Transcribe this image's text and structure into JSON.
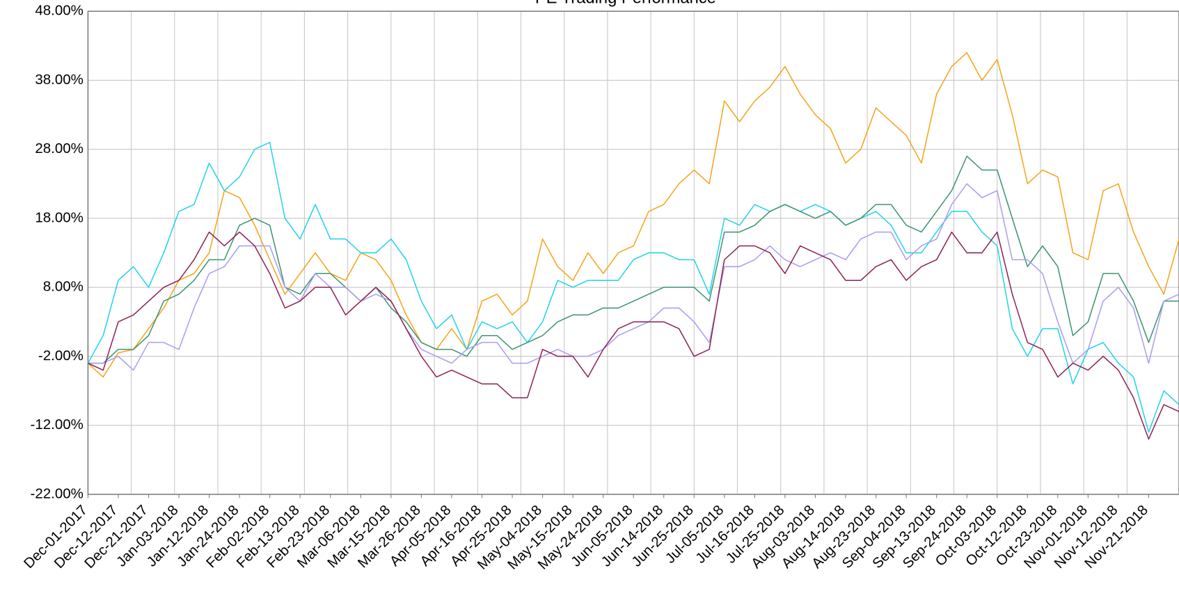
{
  "chart_data": {
    "type": "line",
    "title": "PE Trading Performance",
    "categories": [
      "Dec-01-2017",
      null,
      "Dec-12-2017",
      null,
      "Dec-21-2017",
      null,
      "Jan-03-2018",
      null,
      "Jan-12-2018",
      null,
      "Jan-24-2018",
      null,
      "Feb-02-2018",
      null,
      "Feb-13-2018",
      null,
      "Feb-23-2018",
      null,
      "Mar-06-2018",
      null,
      "Mar-15-2018",
      null,
      "Mar-26-2018",
      null,
      "Apr-05-2018",
      null,
      "Apr-16-2018",
      null,
      "Apr-25-2018",
      null,
      "May-04-2018",
      null,
      "May-15-2018",
      null,
      "May-24-2018",
      null,
      "Jun-05-2018",
      null,
      "Jun-14-2018",
      null,
      "Jun-25-2018",
      null,
      "Jul-05-2018",
      null,
      "Jul-16-2018",
      null,
      "Jul-25-2018",
      null,
      "Aug-03-2018",
      null,
      "Aug-14-2018",
      null,
      "Aug-23-2018",
      null,
      "Sep-04-2018",
      null,
      "Sep-13-2018",
      null,
      "Sep-24-2018",
      null,
      "Oct-03-2018",
      null,
      "Oct-12-2018",
      null,
      "Oct-23-2018",
      null,
      "Nov-01-2018",
      null,
      "Nov-12-2018",
      null,
      "Nov-21-2018",
      null,
      null
    ],
    "series": [
      {
        "color": "#f5a318",
        "values": [
          -3,
          -5,
          -1.5,
          -1,
          2,
          5,
          9,
          10,
          13,
          22,
          21,
          17,
          12,
          7,
          10,
          13,
          10,
          9,
          13,
          12,
          9,
          4,
          0,
          -1,
          2,
          -1,
          6,
          7,
          4,
          6,
          15,
          11,
          9,
          13,
          10,
          13,
          14,
          19,
          20,
          23,
          25,
          23,
          35,
          32,
          35,
          37,
          40,
          36,
          33,
          31,
          26,
          28,
          34,
          32,
          30,
          26,
          36,
          40,
          42,
          38,
          41,
          33,
          23,
          25,
          24,
          13,
          12,
          22,
          23,
          16,
          11,
          7,
          15
        ]
      },
      {
        "color": "#1fd3ec",
        "values": [
          -3,
          1,
          9,
          11,
          8,
          13,
          19,
          20,
          26,
          22,
          24,
          28,
          29,
          18,
          15,
          20,
          15,
          15,
          13,
          13,
          15,
          12,
          6,
          2,
          4,
          -1,
          3,
          2,
          3,
          0,
          3,
          9,
          8,
          9,
          9,
          9,
          12,
          13,
          13,
          12,
          12,
          7,
          18,
          17,
          20,
          19,
          20,
          19,
          20,
          19,
          17,
          18,
          19,
          17,
          13,
          13,
          16,
          19,
          19,
          16,
          14,
          2,
          -2,
          2,
          2,
          -6,
          -1,
          0,
          -3,
          -5,
          -13,
          -7,
          -9
        ]
      },
      {
        "color": "#3a9470",
        "values": [
          -3,
          -3,
          -1,
          -1,
          1,
          6,
          7,
          9,
          12,
          12,
          17,
          18,
          17,
          8,
          7,
          10,
          10,
          8,
          6,
          8,
          5,
          3,
          0,
          -1,
          -1,
          -2,
          1,
          1,
          -1,
          0,
          1,
          3,
          4,
          4,
          5,
          5,
          6,
          7,
          8,
          8,
          8,
          6,
          16,
          16,
          17,
          19,
          20,
          19,
          18,
          19,
          17,
          18,
          20,
          20,
          17,
          16,
          19,
          22,
          27,
          25,
          25,
          18,
          11,
          14,
          11,
          1,
          3,
          10,
          10,
          6,
          0,
          6,
          6
        ]
      },
      {
        "color": "#a99cf0",
        "values": [
          -3,
          -3,
          -2,
          -4,
          0,
          0,
          -1,
          5,
          10,
          11,
          14,
          14,
          14,
          8,
          6,
          10,
          8,
          8,
          6,
          7,
          6,
          2,
          -1,
          -2,
          -3,
          -1,
          0,
          0,
          -3,
          -3,
          -2,
          -1,
          -2,
          -2,
          -1,
          1,
          2,
          3,
          5,
          5,
          3,
          0,
          11,
          11,
          12,
          14,
          12,
          11,
          12,
          13,
          12,
          15,
          16,
          16,
          12,
          14,
          15,
          20,
          23,
          21,
          22,
          12,
          12,
          10,
          3,
          -3,
          -1,
          6,
          8,
          5,
          -3,
          6,
          7
        ]
      },
      {
        "color": "#8c2155",
        "values": [
          -3,
          -4,
          3,
          4,
          6,
          8,
          9,
          12,
          16,
          14,
          16,
          14,
          10,
          5,
          6,
          8,
          8,
          4,
          6,
          8,
          6,
          2,
          -2,
          -5,
          -4,
          -5,
          -6,
          -6,
          -8,
          -8,
          -1,
          -2,
          -2,
          -5,
          -1,
          2,
          3,
          3,
          3,
          2,
          -2,
          -1,
          12,
          14,
          14,
          13,
          10,
          14,
          13,
          12,
          9,
          9,
          11,
          12,
          9,
          11,
          12,
          16,
          13,
          13,
          16,
          7,
          0,
          -1,
          -5,
          -3,
          -4,
          -2,
          -4,
          -8,
          -14,
          -9,
          -10
        ]
      }
    ],
    "ylim": [
      -22,
      48
    ],
    "yticks": [
      {
        "value": 48,
        "label": "48.00%"
      },
      {
        "value": 38,
        "label": "38.00%"
      },
      {
        "value": 28,
        "label": "28.00%"
      },
      {
        "value": 18,
        "label": "18.00%"
      },
      {
        "value": 8,
        "label": "8.00%"
      },
      {
        "value": -2,
        "label": "-2.00%"
      },
      {
        "value": -12,
        "label": "-12.00%"
      },
      {
        "value": -22,
        "label": "-22.00%"
      }
    ],
    "grid": true
  }
}
